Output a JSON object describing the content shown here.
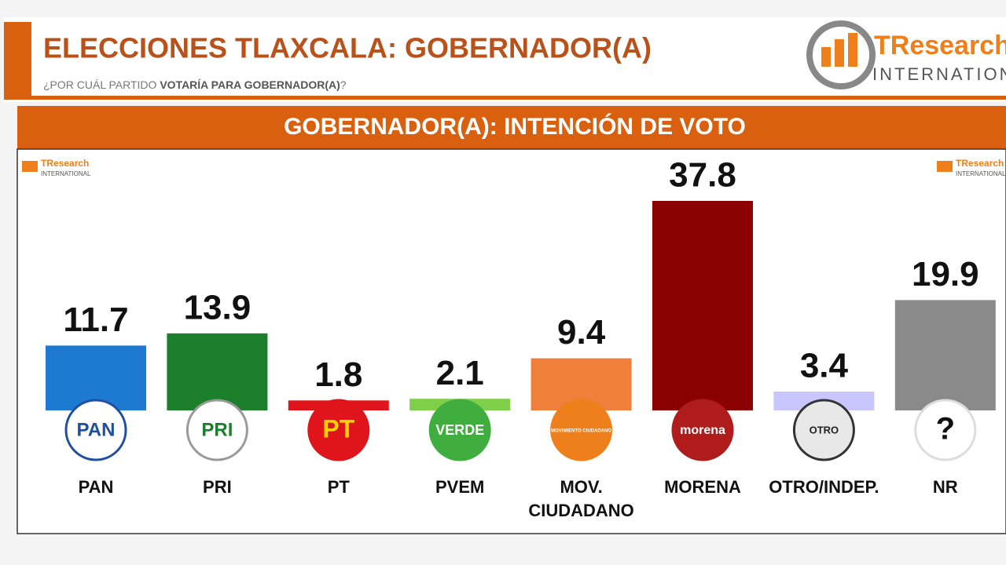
{
  "header": {
    "title": "ELECCIONES TLAXCALA: GOBERNADOR(A)",
    "subtitle": [
      "¿POR CUÁL PARTIDO",
      "VOTARÍA PARA GOBERNADOR(A)",
      "?"
    ],
    "brand": "TResearch",
    "brand_sub": "INTERNATIONAL"
  },
  "chart_data": {
    "type": "bar",
    "title": "GOBERNADOR(A): INTENCIÓN DE VOTO",
    "categories": [
      "PAN",
      "PRI",
      "PT",
      "PVEM",
      "MOV. CIUDADANO",
      "MORENA",
      "OTRO/INDEP.",
      "NR"
    ],
    "values": [
      11.7,
      13.9,
      1.8,
      2.1,
      9.4,
      37.8,
      3.4,
      19.9
    ],
    "colors": [
      "#1e7ad1",
      "#1b7f2b",
      "#e0151b",
      "#7fcf4a",
      "#ef7f3a",
      "#8b0000",
      "#c9c6ff",
      "#8a8a8a"
    ],
    "party_logos": [
      "PAN",
      "PRI",
      "PT",
      "VERDE",
      "MOVIMIENTO CIUDADANO",
      "morena",
      "OTRO",
      "?"
    ]
  }
}
